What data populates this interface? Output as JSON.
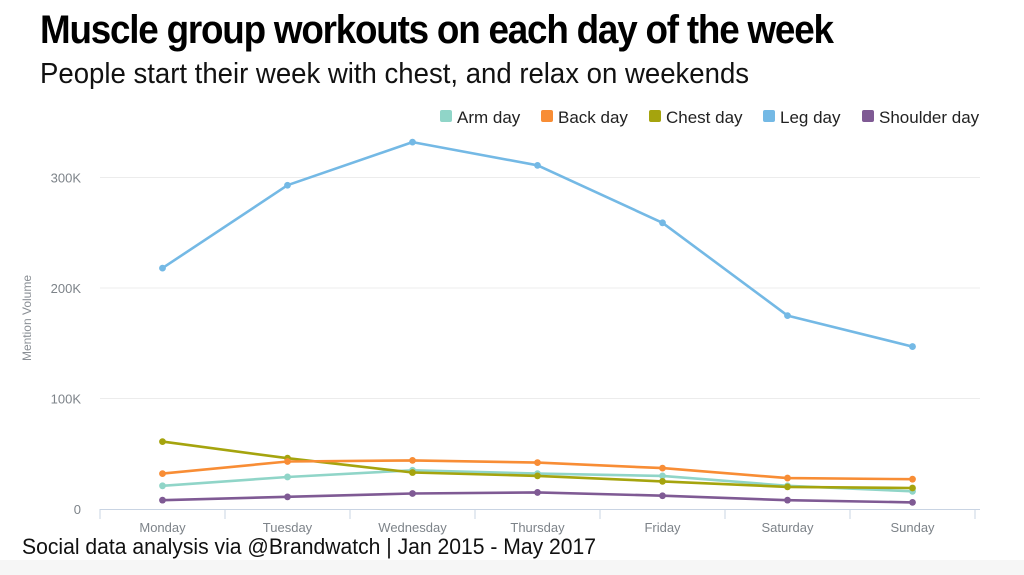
{
  "header": {
    "title": "Muscle group workouts on each day of the week",
    "subtitle": "People start their week with chest, and relax on weekends"
  },
  "footer": {
    "source": "Social data analysis via @Brandwatch | Jan 2015 - May 2017"
  },
  "chart_data": {
    "type": "line",
    "title": "Muscle group workouts on each day of the week",
    "subtitle": "People start their week with chest, and relax on weekends",
    "xlabel": "",
    "ylabel": "Mention Volume",
    "categories": [
      "Monday",
      "Tuesday",
      "Wednesday",
      "Thursday",
      "Friday",
      "Saturday",
      "Sunday"
    ],
    "ylim": [
      0,
      330000
    ],
    "yticks": [
      0,
      100000,
      200000,
      300000
    ],
    "ytick_labels": [
      "0",
      "100K",
      "200K",
      "300K"
    ],
    "grid": "horizontal",
    "legend": "top-right",
    "series": [
      {
        "name": "Arm day",
        "color": "#90d5c8",
        "values": [
          21000,
          29000,
          35000,
          32000,
          30000,
          21000,
          16000
        ]
      },
      {
        "name": "Back day",
        "color": "#f88d35",
        "values": [
          32000,
          43000,
          44000,
          42000,
          37000,
          28000,
          27000
        ]
      },
      {
        "name": "Chest day",
        "color": "#a5a40e",
        "values": [
          61000,
          46000,
          33000,
          30000,
          25000,
          20000,
          19000
        ]
      },
      {
        "name": "Leg day",
        "color": "#74b9e5",
        "values": [
          218000,
          293000,
          332000,
          311000,
          259000,
          175000,
          147000
        ]
      },
      {
        "name": "Shoulder day",
        "color": "#7f5a94",
        "values": [
          8000,
          11000,
          14000,
          15000,
          12000,
          8000,
          6000
        ]
      }
    ]
  }
}
